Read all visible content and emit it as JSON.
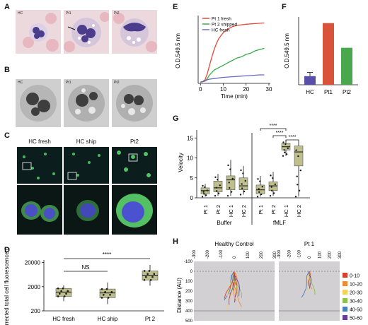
{
  "panels": {
    "A": "A",
    "B": "B",
    "C": "C",
    "D": "D",
    "E": "E",
    "F": "F",
    "G": "G",
    "H": "H"
  },
  "panel_a": {
    "tiles": [
      "HC",
      "Pt1",
      "Pt2"
    ]
  },
  "panel_b": {
    "tiles": [
      "HC",
      "Pt1",
      "Pt2"
    ]
  },
  "panel_c": {
    "columns": [
      "HC fresh",
      "HC ship",
      "Pt2"
    ]
  },
  "chart_data": [
    {
      "panel": "D",
      "type": "box",
      "categories": [
        "HC fresh",
        "HC ship",
        "Pt 2"
      ],
      "ylabel": "Corrected total cell fluorescence (AU)",
      "yticks": [
        "20000",
        "2000",
        "200"
      ],
      "ylim": [
        200,
        20000
      ],
      "yscale": "log",
      "boxes": [
        {
          "q1": 800,
          "median": 1200,
          "q3": 1700,
          "whisker_low": 500,
          "whisker_high": 2300
        },
        {
          "q1": 700,
          "median": 1100,
          "q3": 1600,
          "whisker_low": 380,
          "whisker_high": 3000
        },
        {
          "q1": 3800,
          "median": 6000,
          "q3": 9000,
          "whisker_low": 2200,
          "whisker_high": 16000
        }
      ],
      "annotations": [
        {
          "label": "NS",
          "between": [
            "HC fresh",
            "HC ship"
          ]
        },
        {
          "label": "****",
          "between": [
            "HC fresh",
            "Pt 2"
          ]
        }
      ]
    },
    {
      "panel": "E",
      "type": "line",
      "xlabel": "Time (min)",
      "ylabel": "O.D.549.5 nm",
      "xticks": [
        "0",
        "10",
        "20",
        "30"
      ],
      "xlim": [
        -1,
        30
      ],
      "ylim": [
        0,
        0.55
      ],
      "legend": "top-left",
      "series": [
        {
          "name": "Pt 1 fresh",
          "color": "#e04a3a",
          "x": [
            0,
            1,
            2,
            3,
            4,
            5,
            6,
            7,
            8,
            10,
            12,
            14,
            16,
            18,
            20,
            24,
            28
          ],
          "y": [
            0.01,
            0.015,
            0.03,
            0.08,
            0.15,
            0.22,
            0.28,
            0.33,
            0.37,
            0.42,
            0.45,
            0.47,
            0.48,
            0.485,
            0.49,
            0.495,
            0.5
          ]
        },
        {
          "name": "Pt 2 shipped",
          "color": "#3aab4a",
          "x": [
            0,
            1,
            2,
            3,
            4,
            5,
            6,
            8,
            10,
            12,
            14,
            16,
            18,
            20,
            22,
            24,
            26,
            28
          ],
          "y": [
            0.01,
            0.012,
            0.02,
            0.04,
            0.07,
            0.09,
            0.11,
            0.13,
            0.15,
            0.17,
            0.19,
            0.21,
            0.22,
            0.24,
            0.25,
            0.27,
            0.28,
            0.29
          ]
        },
        {
          "name": "HC fresh",
          "color": "#6a6ac2",
          "x": [
            0,
            1,
            2,
            3,
            4,
            6,
            8,
            10,
            14,
            18,
            22,
            26,
            28
          ],
          "y": [
            0.01,
            0.015,
            0.02,
            0.03,
            0.035,
            0.04,
            0.045,
            0.05,
            0.055,
            0.06,
            0.065,
            0.07,
            0.07
          ]
        }
      ]
    },
    {
      "panel": "F",
      "type": "bar",
      "ylabel": "O.D.549.5 nm",
      "categories": [
        "HC",
        "Pt1",
        "Pt2"
      ],
      "values": [
        0.07,
        0.5,
        0.3
      ],
      "error": [
        0.03,
        0,
        0
      ],
      "colors": [
        "#5a4fa8",
        "#d9533a",
        "#49a84e"
      ],
      "ylim": [
        0,
        0.55
      ]
    },
    {
      "panel": "G",
      "type": "box",
      "ylabel": "Velocity",
      "yticks": [
        "0",
        "5",
        "10",
        "15"
      ],
      "ylim": [
        0,
        17
      ],
      "categories": [
        "Pt 1",
        "Pt 2",
        "HC 1",
        "HC 2",
        "Pt 1",
        "Pt 2",
        "HC 1",
        "HC 2"
      ],
      "groups": [
        "Buffer",
        "fMLF"
      ],
      "boxes": [
        {
          "q1": 1.0,
          "median": 1.8,
          "q3": 2.5,
          "whisker_low": 0.3,
          "whisker_high": 3.5
        },
        {
          "q1": 1.5,
          "median": 2.5,
          "q3": 4.2,
          "whisker_low": 0.5,
          "whisker_high": 6.0
        },
        {
          "q1": 2.0,
          "median": 4.5,
          "q3": 5.5,
          "whisker_low": 0.5,
          "whisker_high": 9.5
        },
        {
          "q1": 2.0,
          "median": 3.0,
          "q3": 5.0,
          "whisker_low": 0.8,
          "whisker_high": 8.0
        },
        {
          "q1": 1.0,
          "median": 2.0,
          "q3": 3.2,
          "whisker_low": 0.3,
          "whisker_high": 5.5
        },
        {
          "q1": 1.8,
          "median": 3.0,
          "q3": 4.0,
          "whisker_low": 0.5,
          "whisker_high": 6.5
        },
        {
          "q1": 12.0,
          "median": 12.8,
          "q3": 13.6,
          "whisker_low": 10.5,
          "whisker_high": 14.5
        },
        {
          "q1": 8.0,
          "median": 11.5,
          "q3": 13.0,
          "whisker_low": 0.3,
          "whisker_high": 14.0
        }
      ],
      "annotations": [
        "****",
        "****",
        "****"
      ]
    },
    {
      "panel": "H",
      "type": "trajectory",
      "ylabel": "Distance (AU)",
      "subplots": [
        "Healthy Control",
        "Pt 1"
      ],
      "xticks": [
        "-300",
        "-200",
        "-100",
        "0",
        "100",
        "200",
        "300"
      ],
      "yticks": [
        "-100",
        "0",
        "100",
        "200",
        "300",
        "400",
        "500"
      ],
      "xlim": [
        -300,
        300
      ],
      "ylim": [
        -100,
        500
      ],
      "legend": [
        {
          "label": "0-10",
          "color": "#d9402b"
        },
        {
          "label": "10-20",
          "color": "#f08a35"
        },
        {
          "label": "20-30",
          "color": "#f4d35a"
        },
        {
          "label": "30-40",
          "color": "#8bc24a"
        },
        {
          "label": "40-50",
          "color": "#4a7fbf"
        },
        {
          "label": "50-60",
          "color": "#6a3b9c"
        }
      ]
    }
  ]
}
